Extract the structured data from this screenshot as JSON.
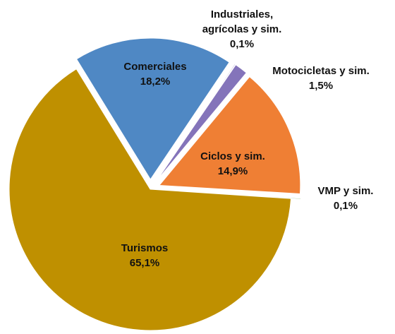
{
  "chart_data": {
    "type": "pie",
    "categories": [
      "Comerciales",
      "Industriales, agrícolas y sim.",
      "Motocicletas y sim.",
      "Ciclos y sim.",
      "VMP y sim.",
      "Turismos"
    ],
    "values": [
      18.2,
      0.1,
      1.5,
      14.9,
      0.1,
      65.1
    ],
    "value_labels": [
      "18,2%",
      "0,1%",
      "1,5%",
      "14,9%",
      "0,1%",
      "65,1%"
    ],
    "colors": [
      "#4f88c4",
      "#8070b8",
      "#8474ba",
      "#ef7f34",
      "#6aa84f",
      "#bf9000"
    ]
  }
}
